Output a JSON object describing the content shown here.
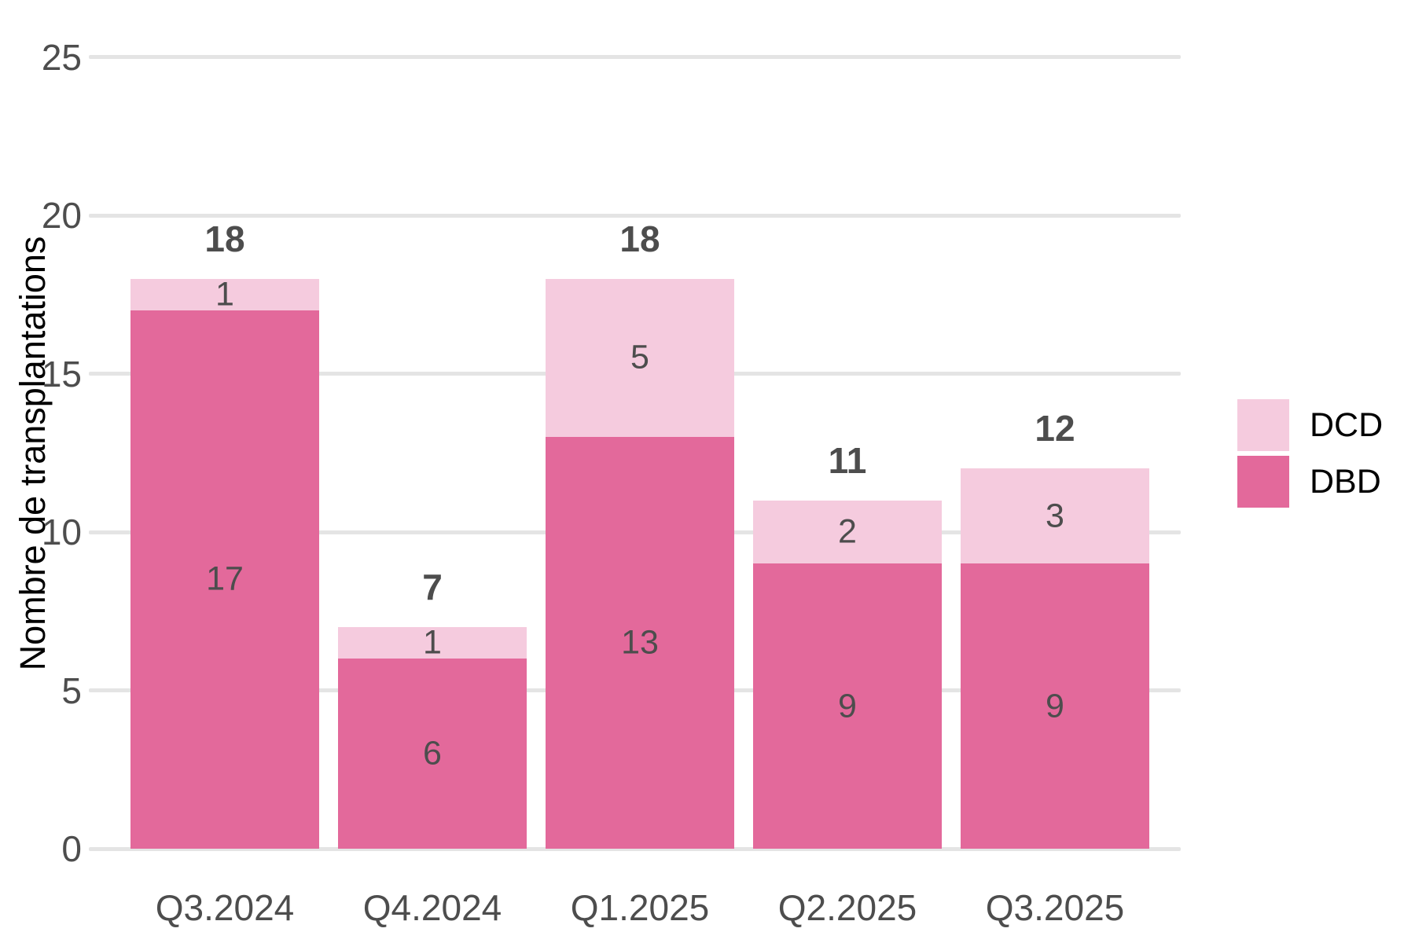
{
  "chart_data": {
    "type": "bar",
    "stacked": true,
    "orientation": "vertical",
    "categories": [
      "Q3.2024",
      "Q4.2024",
      "Q1.2025",
      "Q2.2025",
      "Q3.2025"
    ],
    "series": [
      {
        "name": "DBD",
        "color": "#e3699b",
        "values": [
          17,
          6,
          13,
          9,
          9
        ],
        "stack_order": "bottom"
      },
      {
        "name": "DCD",
        "color": "#f5cbde",
        "values": [
          1,
          1,
          5,
          2,
          3
        ],
        "stack_order": "top"
      }
    ],
    "totals": [
      18,
      7,
      18,
      11,
      12
    ],
    "title": "",
    "xlabel": "",
    "ylabel": "Nombre de transplantations",
    "ylim": [
      0,
      25
    ],
    "yticks": [
      0,
      5,
      10,
      15,
      20,
      25
    ],
    "grid": true,
    "gridline_color": "#e4e4e4",
    "background_color": "#ffffff",
    "tick_label_color": "#4d4d4d",
    "value_label_color": "#4d4d4d",
    "legend_position": "right",
    "legend_order": [
      "DCD",
      "DBD"
    ]
  }
}
